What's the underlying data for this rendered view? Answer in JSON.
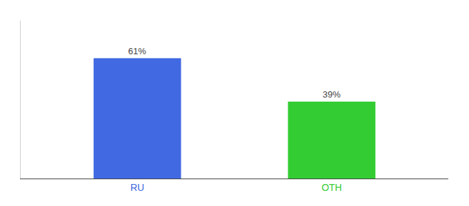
{
  "chart_data": {
    "type": "bar",
    "categories": [
      "RU",
      "OTH"
    ],
    "values": [
      61,
      39
    ],
    "value_labels": [
      "61%",
      "39%"
    ],
    "colors": [
      "#4169e1",
      "#33cc33"
    ],
    "data_labels": true,
    "ylim": [
      0,
      80
    ],
    "grid": false,
    "tick_labels": "x"
  }
}
